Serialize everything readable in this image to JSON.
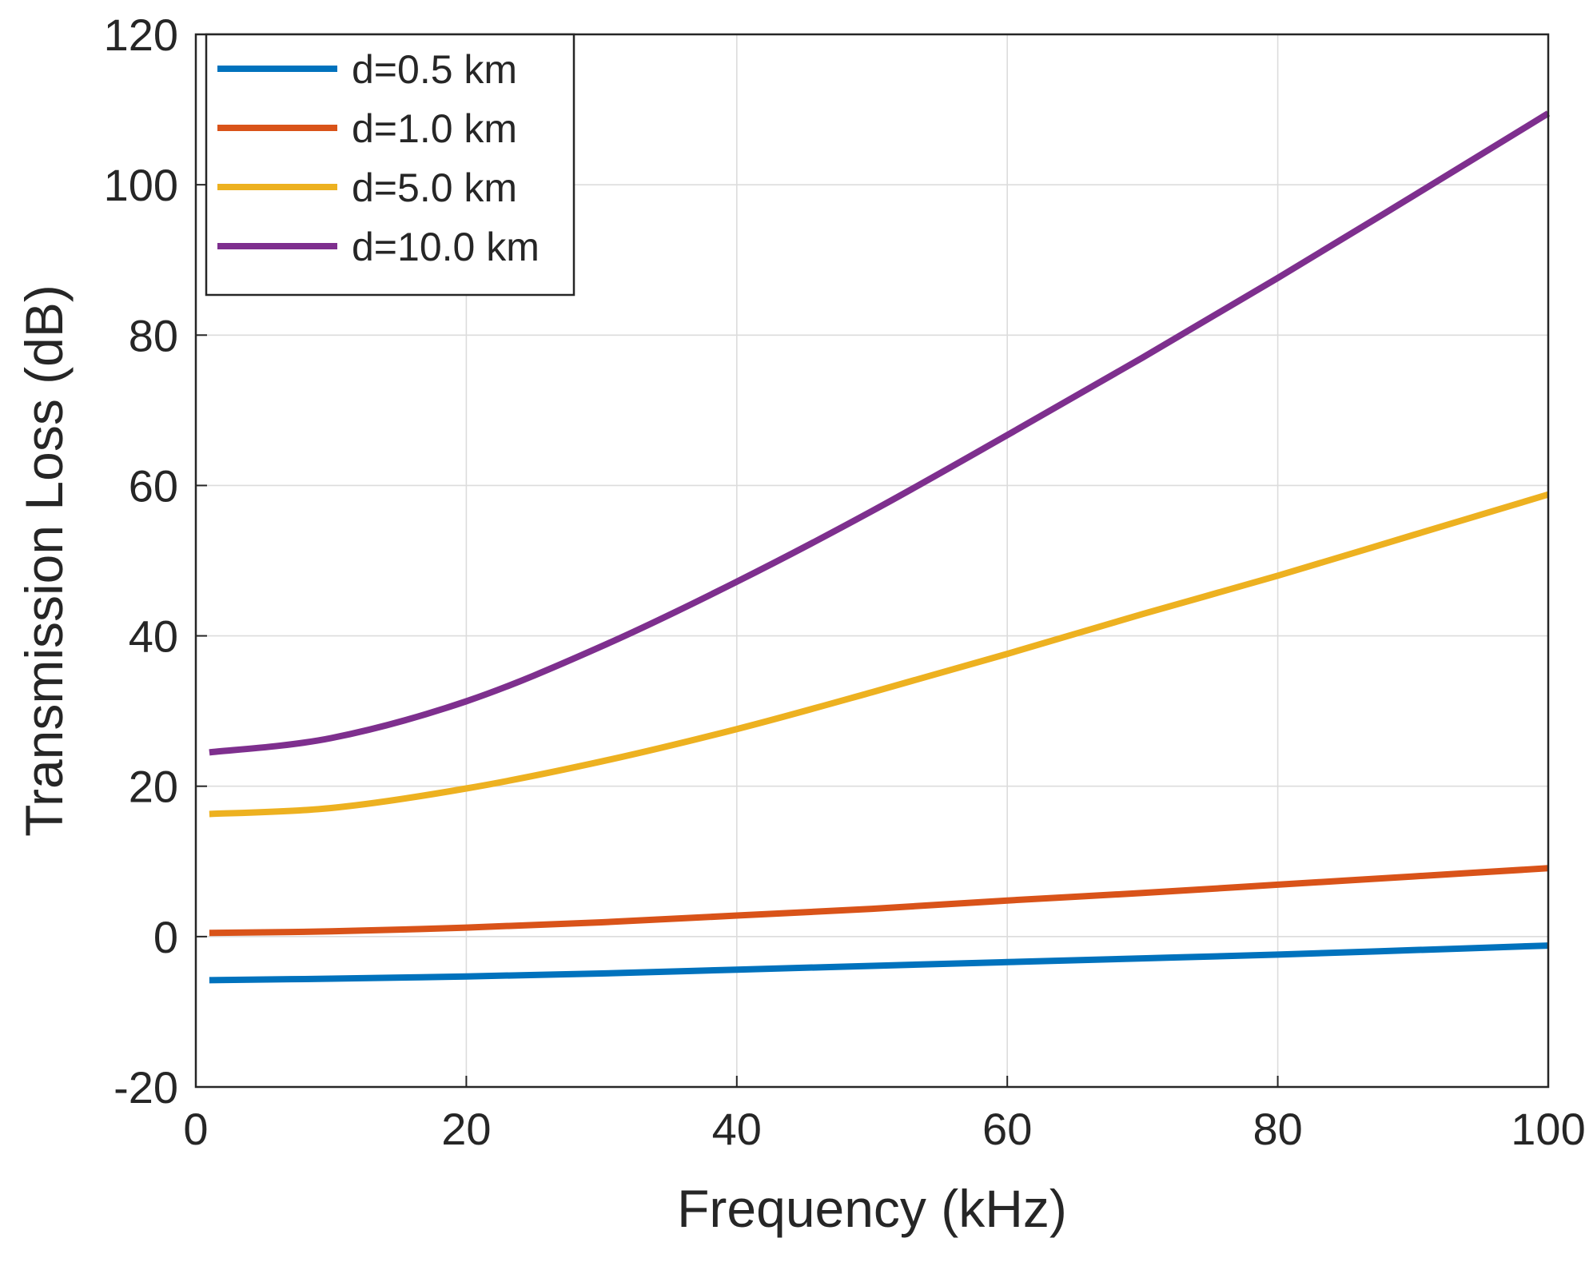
{
  "chart_data": {
    "type": "line",
    "title": "",
    "xlabel": "Frequency (kHz)",
    "ylabel": "Transmission Loss (dB)",
    "xlim": [
      0,
      100
    ],
    "ylim": [
      -20,
      120
    ],
    "xticks": [
      0,
      20,
      40,
      60,
      80,
      100
    ],
    "yticks": [
      -20,
      0,
      20,
      40,
      60,
      80,
      100,
      120
    ],
    "xtick_labels": [
      "0",
      "20",
      "40",
      "60",
      "80",
      "100"
    ],
    "ytick_labels": [
      "-20",
      "0",
      "20",
      "40",
      "60",
      "80",
      "100",
      "120"
    ],
    "grid": true,
    "legend_position": "top-left",
    "x": [
      1,
      10,
      20,
      30,
      40,
      50,
      60,
      70,
      80,
      90,
      100
    ],
    "series": [
      {
        "name": "d=0.5 km",
        "color": "#0072BD",
        "values": [
          -5.8,
          -5.6,
          -5.3,
          -4.9,
          -4.4,
          -3.9,
          -3.4,
          -2.9,
          -2.4,
          -1.8,
          -1.2
        ]
      },
      {
        "name": "d=1.0 km",
        "color": "#D95319",
        "values": [
          0.5,
          0.7,
          1.2,
          1.9,
          2.8,
          3.7,
          4.8,
          5.8,
          6.9,
          8.0,
          9.1
        ]
      },
      {
        "name": "d=5.0 km",
        "color": "#EDB120",
        "values": [
          16.3,
          17.1,
          19.7,
          23.3,
          27.6,
          32.5,
          37.6,
          42.9,
          48.0,
          53.4,
          58.8
        ]
      },
      {
        "name": "d=10.0 km",
        "color": "#7E2F8E",
        "values": [
          24.5,
          26.4,
          31.3,
          38.6,
          47.2,
          56.6,
          66.7,
          77.0,
          87.6,
          98.5,
          109.5
        ]
      }
    ]
  }
}
